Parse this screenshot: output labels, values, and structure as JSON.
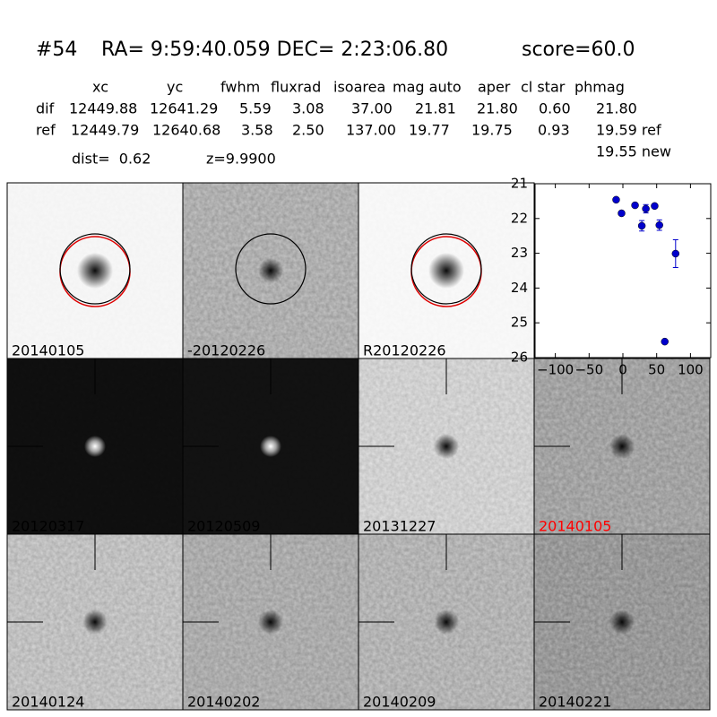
{
  "header": {
    "id": "#54",
    "coords": "RA= 9:59:40.059 DEC= 2:23:06.80",
    "score": "score=60.0",
    "dist": "dist=  0.62",
    "z": "z=9.9900"
  },
  "table": {
    "columns": [
      "xc",
      "yc",
      "fwhm",
      "fluxrad",
      "isoarea",
      "mag auto",
      "aper",
      "cl star",
      "phmag"
    ],
    "rows": [
      [
        "dif",
        "12449.88",
        "12641.29",
        "5.59",
        "3.08",
        "37.00",
        "21.81",
        "21.80",
        "0.60",
        "21.80"
      ],
      [
        "ref",
        "12449.79",
        "12640.68",
        "3.58",
        "2.50",
        "137.00",
        "19.77",
        "19.75",
        "0.93",
        "19.59 ref"
      ]
    ],
    "extra": "19.55 new"
  },
  "panels": [
    "20140105",
    "-20120226",
    "R20120226",
    "20120317",
    "20120509",
    "20131227",
    "20140105",
    "20140124",
    "20140202",
    "20140209",
    "20140221"
  ],
  "chart_data": {
    "type": "errorbar",
    "x": [
      -10,
      -2,
      18,
      28,
      34,
      47,
      54,
      78,
      62
    ],
    "values": [
      21.46,
      21.85,
      21.62,
      22.21,
      21.72,
      21.64,
      22.19,
      23.01,
      25.54
    ],
    "errors": [
      0.05,
      0.06,
      0.05,
      0.15,
      0.12,
      0.05,
      0.15,
      0.4,
      0.05
    ],
    "color": "#0000cc",
    "xlim": [
      -130,
      130
    ],
    "ylim": [
      26,
      21
    ],
    "xticks": [
      {
        "value": -100,
        "label": "−100"
      },
      {
        "value": -50,
        "label": "−50"
      },
      0,
      50,
      100
    ],
    "yticks": [
      21,
      22,
      23,
      24,
      25,
      26
    ]
  }
}
